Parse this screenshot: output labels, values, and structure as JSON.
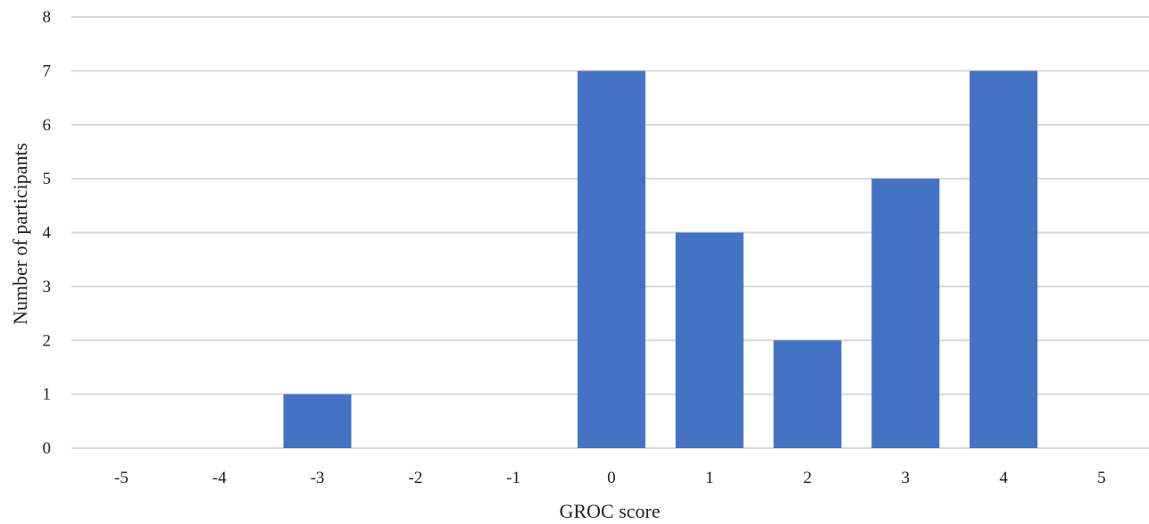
{
  "chart_data": {
    "type": "bar",
    "categories": [
      "-5",
      "-4",
      "-3",
      "-2",
      "-1",
      "0",
      "1",
      "2",
      "3",
      "4",
      "5"
    ],
    "values": [
      0,
      0,
      1,
      0,
      0,
      7,
      4,
      2,
      5,
      7,
      0
    ],
    "title": "",
    "xlabel": "GROC score",
    "ylabel": "Number of participants",
    "ylim": [
      0,
      8
    ],
    "yticks": [
      "0",
      "1",
      "2",
      "3",
      "4",
      "5",
      "6",
      "7",
      "8"
    ],
    "grid": "horizontal",
    "legend": "none",
    "colors": {
      "bar": "#4472C4",
      "grid": "#D9D9D9",
      "text": "#222222"
    }
  }
}
